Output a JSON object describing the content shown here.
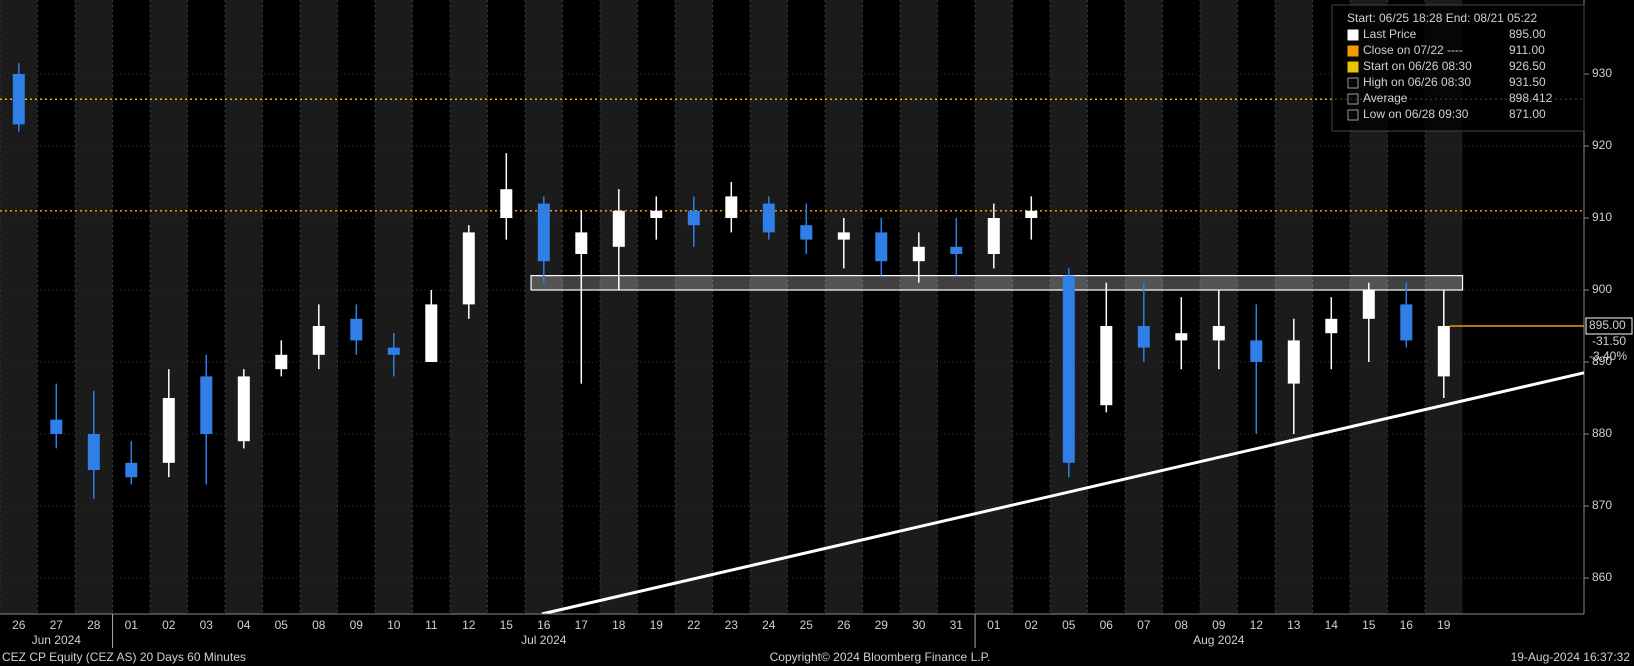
{
  "chart_data": {
    "type": "candlestick",
    "months": [
      {
        "label": "Jun 2024",
        "days": [
          "26",
          "27",
          "28"
        ]
      },
      {
        "label": "Jul 2024",
        "days": [
          "01",
          "02",
          "03",
          "04",
          "05",
          "08",
          "09",
          "10",
          "11",
          "12",
          "15",
          "16",
          "17",
          "18",
          "19",
          "22",
          "23",
          "24",
          "25",
          "26",
          "29",
          "30",
          "31"
        ]
      },
      {
        "label": "Aug 2024",
        "days": [
          "01",
          "02",
          "05",
          "06",
          "07",
          "08",
          "09",
          "12",
          "13",
          "14",
          "15",
          "16",
          "19"
        ]
      }
    ],
    "open": [
      930,
      882,
      880,
      876,
      876,
      888,
      879,
      889,
      891,
      896,
      892,
      890,
      898,
      910,
      912,
      905,
      906,
      910,
      911,
      910,
      912,
      909,
      907,
      908,
      904,
      906,
      905,
      910,
      902,
      884,
      895,
      893,
      893,
      893,
      887,
      894,
      896,
      898,
      888
    ],
    "high": [
      931.5,
      887,
      886,
      879,
      889,
      891,
      889,
      893,
      898,
      898,
      894,
      900,
      909,
      919,
      913,
      911,
      914,
      913,
      913,
      915,
      913,
      912,
      910,
      910,
      908,
      910,
      912,
      913,
      903,
      901,
      901,
      899,
      900,
      898,
      896,
      899,
      901,
      901,
      900
    ],
    "low": [
      922,
      878,
      871,
      873,
      874,
      873,
      878,
      888,
      889,
      891,
      888,
      890,
      896,
      907,
      901,
      887,
      900,
      907,
      906,
      908,
      907,
      905,
      903,
      902,
      901,
      902,
      903,
      907,
      874,
      883,
      890,
      889,
      889,
      880,
      880,
      889,
      890,
      892,
      885
    ],
    "close": [
      923,
      880,
      875,
      874,
      885,
      880,
      888,
      891,
      895,
      893,
      891,
      898,
      908,
      914,
      904,
      908,
      911,
      911,
      909,
      913,
      908,
      907,
      908,
      904,
      906,
      905,
      910,
      911,
      876,
      895,
      892,
      894,
      895,
      890,
      893,
      896,
      900,
      893,
      895
    ],
    "up_color": "#ffffff",
    "down_color": "#2f7fe6",
    "ylim": [
      855,
      940
    ],
    "yticks": [
      860,
      870,
      880,
      890,
      900,
      910,
      920,
      930
    ],
    "grid": true,
    "legend_header": "Start: 06/25 18:28 End: 08/21 05:22",
    "legend": [
      {
        "name": "Last Price",
        "color": "#ffffff",
        "value": 895,
        "label": "895.00"
      },
      {
        "name": "Close on 07/22 ----",
        "color": "#f29b00",
        "value": 911,
        "label": "911.00"
      },
      {
        "name": "Start on 06/26 08:30",
        "color": "#e8c400",
        "value": 926.5,
        "label": "926.50"
      },
      {
        "name": "High on 06/26 08:30",
        "color": "#9a9a9a",
        "value": 931.5,
        "label": "931.50"
      },
      {
        "name": "Average",
        "color": "#9a9a9a",
        "value": 898.412,
        "label": "898.412"
      },
      {
        "name": "Low on 06/28 09:30",
        "color": "#9a9a9a",
        "value": 871,
        "label": "871.00"
      }
    ],
    "last_tag": {
      "value": 895,
      "label": "895.00",
      "change": "-31.50",
      "change_pct": "-3.40%"
    },
    "trendline": {
      "y": [
        855,
        888.5
      ]
    },
    "range_box": {
      "ylim": [
        900,
        902
      ]
    },
    "footer_left": "CEZ CP Equity (CEZ AS) 20 Days 60 Minutes",
    "footer_center": "Copyright© 2024 Bloomberg Finance L.P.",
    "footer_right": "19-Aug-2024 16:37:32"
  }
}
